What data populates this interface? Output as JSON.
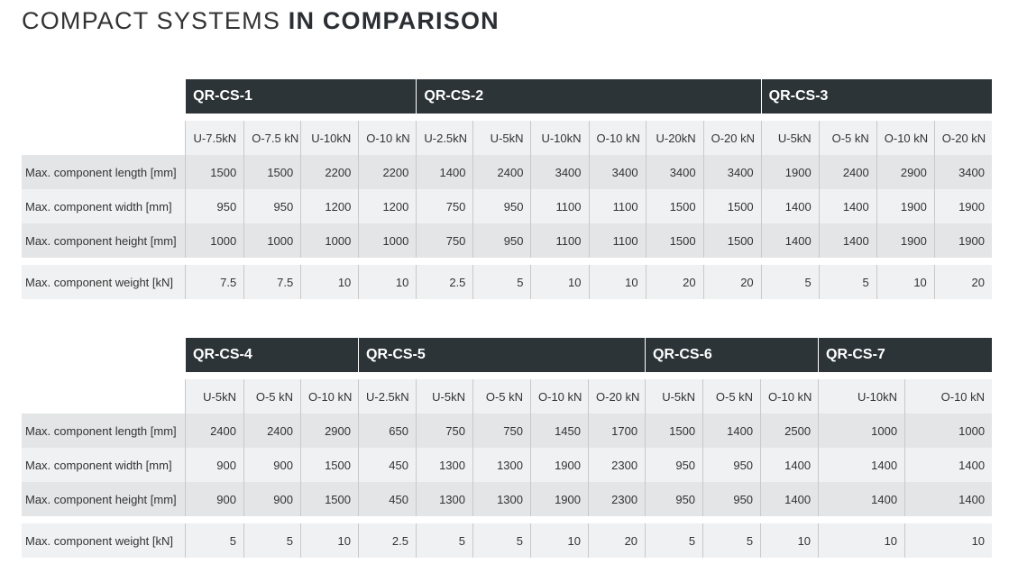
{
  "title": {
    "thin": "COMPACT SYSTEMS ",
    "bold": "IN COMPARISON"
  },
  "row_labels": {
    "length": "Max. component length [mm]",
    "width": "Max. component width [mm]",
    "height": "Max. component height [mm]",
    "weight": "Max. component weight [kN]"
  },
  "table1": {
    "models": [
      "QR-CS-1",
      "QR-CS-2",
      "QR-CS-3"
    ],
    "variants": [
      "U-7.5kN",
      "O-7.5 kN",
      "U-10kN",
      "O-10 kN",
      "U-2.5kN",
      "U-5kN",
      "U-10kN",
      "O-10 kN",
      "U-20kN",
      "O-20 kN",
      "U-5kN",
      "O-5 kN",
      "O-10 kN",
      "O-20 kN"
    ],
    "length": [
      "1500",
      "1500",
      "2200",
      "2200",
      "1400",
      "2400",
      "3400",
      "3400",
      "3400",
      "3400",
      "1900",
      "2400",
      "2900",
      "3400"
    ],
    "width": [
      "950",
      "950",
      "1200",
      "1200",
      "750",
      "950",
      "1100",
      "1100",
      "1500",
      "1500",
      "1400",
      "1400",
      "1900",
      "1900"
    ],
    "height": [
      "1000",
      "1000",
      "1000",
      "1000",
      "750",
      "950",
      "1100",
      "1100",
      "1500",
      "1500",
      "1400",
      "1400",
      "1900",
      "1900"
    ],
    "weight": [
      "7.5",
      "7.5",
      "10",
      "10",
      "2.5",
      "5",
      "10",
      "10",
      "20",
      "20",
      "5",
      "5",
      "10",
      "20"
    ]
  },
  "table2": {
    "models": [
      "QR-CS-4",
      "QR-CS-5",
      "QR-CS-6",
      "QR-CS-7"
    ],
    "variants": [
      "U-5kN",
      "O-5 kN",
      "O-10 kN",
      "U-2.5kN",
      "U-5kN",
      "O-5 kN",
      "O-10 kN",
      "O-20 kN",
      "U-5kN",
      "O-5 kN",
      "O-10 kN",
      "U-10kN",
      "O-10 kN"
    ],
    "length": [
      "2400",
      "2400",
      "2900",
      "650",
      "750",
      "750",
      "1450",
      "1700",
      "1500",
      "1400",
      "2500",
      "1000",
      "1000"
    ],
    "width": [
      "900",
      "900",
      "1500",
      "450",
      "1300",
      "1300",
      "1900",
      "2300",
      "950",
      "950",
      "1400",
      "1400",
      "1400"
    ],
    "height": [
      "900",
      "900",
      "1500",
      "450",
      "1300",
      "1300",
      "1900",
      "2300",
      "950",
      "950",
      "1400",
      "1400",
      "1400"
    ],
    "weight": [
      "5",
      "5",
      "10",
      "2.5",
      "5",
      "5",
      "10",
      "20",
      "5",
      "5",
      "10",
      "10",
      "10"
    ]
  }
}
